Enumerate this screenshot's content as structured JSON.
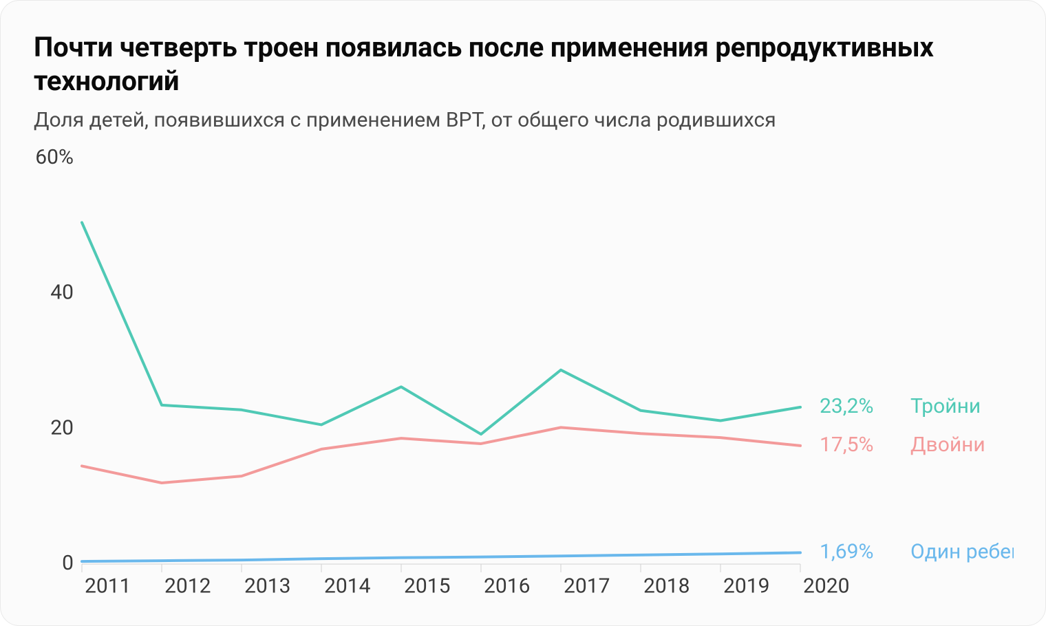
{
  "title": "Почти четверть троен появилась после применения репродуктивных технологий",
  "subtitle": "Доля детей, появившихся с применением ВРТ, от общего числа родившихся",
  "chart": {
    "type": "line",
    "background_color": "#fbfbfb",
    "border_color": "#e9e9e9",
    "border_radius": 28,
    "title_fontsize": 40,
    "subtitle_fontsize": 30,
    "axis_fontsize": 30,
    "label_fontsize": 30,
    "line_width": 4,
    "x": {
      "categories": [
        "2011",
        "2012",
        "2013",
        "2014",
        "2015",
        "2016",
        "2017",
        "2018",
        "2019",
        "2020"
      ],
      "tick_color": "#d0d0d0"
    },
    "y": {
      "min": 0,
      "max": 60,
      "ticks": [
        0,
        20,
        40,
        60
      ],
      "tick_labels": [
        "0",
        "20",
        "40",
        "60%"
      ],
      "baseline_color": "#d0d0d0"
    },
    "series": [
      {
        "name": "Тройни",
        "color": "#4fc9b5",
        "values": [
          50.5,
          23.5,
          22.8,
          20.6,
          26.2,
          19.2,
          28.7,
          22.7,
          21.2,
          23.2
        ],
        "end_value_label": "23,2%"
      },
      {
        "name": "Двойни",
        "color": "#f39a9a",
        "values": [
          14.5,
          12.0,
          13.0,
          17.0,
          18.6,
          17.8,
          20.2,
          19.3,
          18.7,
          17.5
        ],
        "end_value_label": "17,5%"
      },
      {
        "name": "Один ребенок",
        "color": "#6ab8ec",
        "values": [
          0.4,
          0.5,
          0.6,
          0.8,
          0.95,
          1.05,
          1.2,
          1.35,
          1.5,
          1.69
        ],
        "end_value_label": "1,69%"
      }
    ],
    "label_text_color": "#3a3a3a"
  }
}
